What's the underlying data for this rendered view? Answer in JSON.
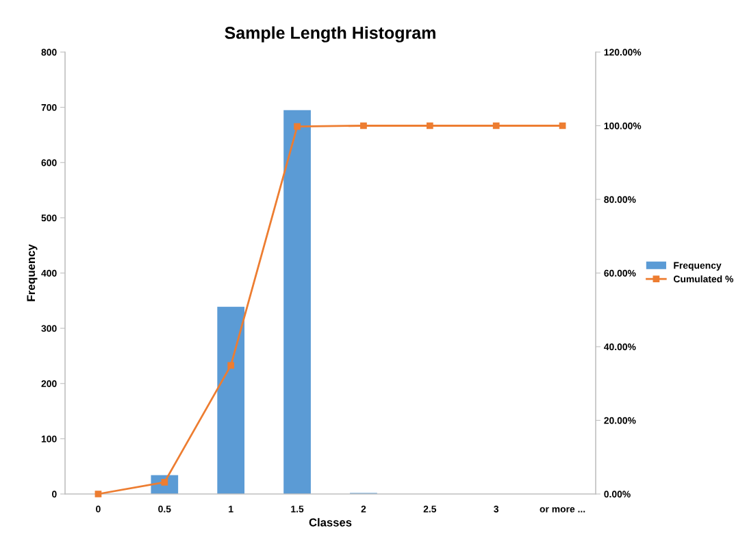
{
  "chart_data": {
    "type": "bar",
    "title": "Sample Length Histogram",
    "xlabel": "Classes",
    "ylabel": "Frequency",
    "categories": [
      "0",
      "0.5",
      "1",
      "1.5",
      "2",
      "2.5",
      "3",
      "or more ..."
    ],
    "series": [
      {
        "name": "Frequency",
        "color": "#5b9bd5",
        "values": [
          0,
          34,
          339,
          695,
          2,
          0,
          0,
          0
        ]
      },
      {
        "name": "Cumulated %",
        "type": "line",
        "axis": "y2",
        "color": "#ed7d31",
        "marker": "square",
        "values": [
          0,
          3.2,
          34.9,
          99.8,
          100,
          100,
          100,
          100
        ]
      }
    ],
    "ylim": [
      0,
      800
    ],
    "yticks": [
      0,
      100,
      200,
      300,
      400,
      500,
      600,
      700,
      800
    ],
    "y2lim": [
      0,
      120
    ],
    "y2ticks": [
      {
        "value": 0,
        "label": "0.00%"
      },
      {
        "value": 20,
        "label": "20.00%"
      },
      {
        "value": 40,
        "label": "40.00%"
      },
      {
        "value": 60,
        "label": "60.00%"
      },
      {
        "value": 80,
        "label": "80.00%"
      },
      {
        "value": 100,
        "label": "100.00%"
      },
      {
        "value": 120,
        "label": "120.00%"
      }
    ],
    "grid": false,
    "legend": "right"
  }
}
